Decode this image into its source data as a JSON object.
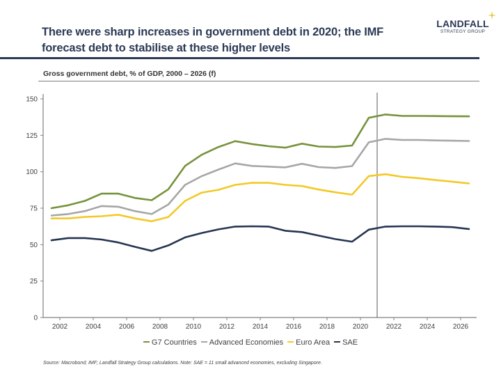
{
  "header": {
    "title": "There were sharp increases in government debt in 2020; the IMF forecast debt to stabilise at these higher levels",
    "logo_main": "LANDFALL",
    "logo_sub": "STRATEGY GROUP",
    "logo_star_color": "#e8c84a"
  },
  "footer": {
    "source": "Source: Macrobond;  IMF; Landfall Strategy Group calculations. Note: SAE = 11 small advanced economies, excluding Singapore."
  },
  "chart_data": {
    "type": "line",
    "title": "Gross government debt, % of GDP, 2000 – 2026 (f)",
    "xlabel": "",
    "ylabel": "",
    "x": [
      2001,
      2002,
      2003,
      2004,
      2005,
      2006,
      2007,
      2008,
      2009,
      2010,
      2011,
      2012,
      2013,
      2014,
      2015,
      2016,
      2017,
      2018,
      2019,
      2020,
      2021,
      2022,
      2023,
      2024,
      2025,
      2026
    ],
    "xlim": [
      2001,
      2027
    ],
    "ylim": [
      0,
      150
    ],
    "yticks": [
      0,
      25,
      50,
      75,
      100,
      125,
      150
    ],
    "xticks": [
      2002,
      2004,
      2006,
      2008,
      2010,
      2012,
      2014,
      2016,
      2018,
      2020,
      2022,
      2024,
      2026
    ],
    "forecast_marker_year": 2021,
    "grid": false,
    "legend_position": "bottom",
    "series": [
      {
        "name": "G7 Countries",
        "color": "#76923c",
        "values": [
          75.0,
          77.0,
          80.0,
          85.0,
          85.0,
          82.0,
          80.5,
          88.0,
          104.0,
          111.7,
          117.0,
          121.0,
          119.0,
          117.5,
          116.5,
          119.3,
          117.3,
          117.0,
          118.0,
          137.0,
          139.3,
          138.3,
          138.3,
          138.2,
          138.1,
          138.0
        ]
      },
      {
        "name": "Advanced Economies",
        "color": "#a6a6a6",
        "values": [
          70.0,
          71.0,
          73.0,
          76.5,
          76.0,
          73.0,
          71.0,
          77.6,
          91.0,
          97.0,
          101.5,
          105.7,
          104.0,
          103.5,
          103.0,
          105.5,
          103.2,
          102.6,
          103.9,
          120.2,
          122.6,
          121.8,
          121.8,
          121.5,
          121.3,
          121.1
        ]
      },
      {
        "name": "Euro Area",
        "color": "#f2c927",
        "values": [
          68.0,
          68.0,
          69.0,
          69.5,
          70.5,
          68.0,
          66.0,
          69.0,
          80.0,
          85.7,
          87.6,
          91.0,
          92.4,
          92.4,
          91.0,
          90.2,
          87.8,
          85.9,
          84.3,
          97.0,
          98.3,
          96.5,
          95.6,
          94.3,
          93.2,
          92.0
        ]
      },
      {
        "name": "SAE",
        "color": "#253551",
        "values": [
          53.0,
          54.5,
          54.5,
          53.5,
          51.5,
          48.5,
          45.7,
          49.5,
          55.0,
          58.0,
          60.5,
          62.4,
          62.6,
          62.4,
          59.5,
          58.6,
          56.2,
          53.8,
          52.0,
          60.3,
          62.4,
          62.6,
          62.6,
          62.4,
          62.0,
          60.7
        ]
      }
    ]
  }
}
